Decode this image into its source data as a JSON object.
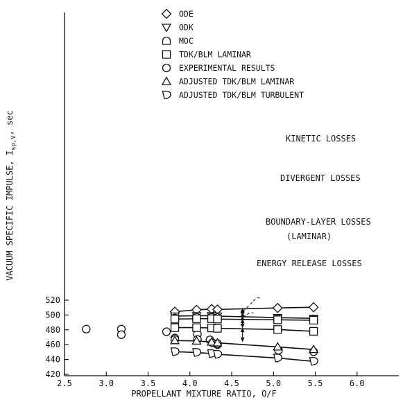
{
  "chart_data": {
    "type": "scatter",
    "xlabel": "PROPELLANT MIXTURE RATIO, O/F",
    "ylabel": "VACUUM SPECIFIC IMPULSE, I",
    "ylabel_sub": "sp,V",
    "ylabel_unit": ", sec",
    "xlim": [
      2.5,
      6.5
    ],
    "ylim": [
      420,
      540
    ],
    "xticks": [
      "2.5",
      "3.0",
      "3.5",
      "4.0",
      "4.5",
      "5.0",
      "5.5",
      "6.0"
    ],
    "yticks": [
      "420",
      "440",
      "460",
      "480",
      "500",
      "520"
    ],
    "grid": false,
    "legend_position": "top-center",
    "series": [
      {
        "name": "ODE",
        "marker": "diamond",
        "line": true,
        "x": [
          3.82,
          4.08,
          4.26,
          4.33,
          5.05,
          5.48
        ],
        "y": [
          504.5,
          507,
          508,
          507.5,
          509.5,
          510.5
        ]
      },
      {
        "name": "ODK",
        "marker": "triangle-down",
        "line": true,
        "x": [
          3.82,
          4.08,
          4.26,
          4.33,
          5.05,
          5.48
        ],
        "y": [
          498.5,
          499,
          499,
          498.5,
          496.5,
          495.5
        ]
      },
      {
        "name": "MOC",
        "marker": "dome",
        "line": false,
        "x": [
          3.82,
          4.08,
          4.26,
          4.33,
          5.05,
          5.48
        ],
        "y": [
          496,
          497,
          497,
          496.5,
          495,
          494
        ]
      },
      {
        "name": "TDK/BLM LAMINAR",
        "marker": "square",
        "line": true,
        "x": [
          3.82,
          4.08,
          4.26,
          4.33,
          5.05,
          5.48
        ],
        "y": [
          494.5,
          495,
          495,
          494.5,
          493.5,
          493
        ]
      },
      {
        "name": "EXPERIMENTAL RESULTS",
        "marker": "circle",
        "line": false,
        "x": [
          2.76,
          3.18,
          3.18,
          3.72,
          3.82,
          3.82,
          4.09,
          4.09,
          4.24,
          4.27,
          4.33,
          4.33,
          5.06,
          5.48
        ],
        "y": [
          481,
          481,
          473.5,
          477.5,
          469,
          467,
          474,
          467,
          466.5,
          462.5,
          460,
          461.5,
          452.5,
          450.5
        ]
      },
      {
        "name": "ADJUSTED TDK/BLM LAMINAR",
        "marker": "triangle-up",
        "line": true,
        "x": [
          3.82,
          4.08,
          4.26,
          4.33,
          5.05,
          5.48
        ],
        "y": [
          465.5,
          465,
          463.5,
          462.5,
          457,
          453.5
        ]
      },
      {
        "name": "ADJUSTED TDK/BLM TURBULENT",
        "marker": "trap",
        "line": true,
        "x": [
          3.82,
          4.08,
          4.26,
          4.33,
          5.05,
          5.48
        ],
        "y": [
          450.5,
          449.5,
          448,
          447,
          442,
          437.5
        ]
      },
      {
        "name": "",
        "marker": "square",
        "line": true,
        "x": [
          3.82,
          4.08,
          4.26,
          4.33,
          5.05,
          5.48
        ],
        "y": [
          483,
          483,
          482.5,
          482,
          480.5,
          478
        ]
      }
    ],
    "annotations": [
      {
        "text": "KINETIC LOSSES"
      },
      {
        "text": "DIVERGENT LOSSES"
      },
      {
        "text": "BOUNDARY-LAYER LOSSES"
      },
      {
        "text": "(LAMINAR)"
      },
      {
        "text": "ENERGY RELEASE LOSSES"
      }
    ]
  }
}
